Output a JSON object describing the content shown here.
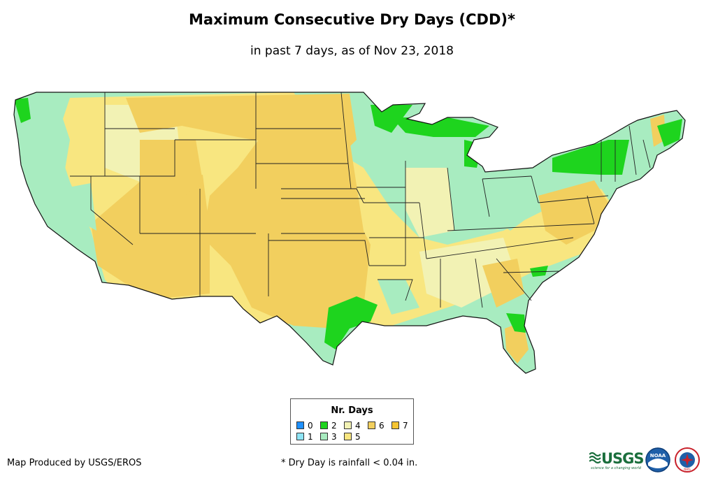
{
  "title": "Maximum Consecutive Dry Days (CDD)*",
  "subtitle": "in past 7 days, as of Nov 23, 2018",
  "legend": {
    "title": "Nr. Days",
    "items": [
      {
        "label": "0",
        "color": "#1e90ff"
      },
      {
        "label": "1",
        "color": "#8ee4f5"
      },
      {
        "label": "2",
        "color": "#1ed41e"
      },
      {
        "label": "3",
        "color": "#a8ecc0"
      },
      {
        "label": "4",
        "color": "#f2f2b4"
      },
      {
        "label": "5",
        "color": "#f8e680"
      },
      {
        "label": "6",
        "color": "#f2cf5e"
      },
      {
        "label": "7",
        "color": "#f5c431"
      }
    ]
  },
  "credit": "Map Produced by USGS/EROS",
  "footnote": "* Dry Day is rainfall < 0.04 in.",
  "logos": {
    "usgs": "USGS",
    "usgs_tagline": "science for a changing world",
    "noaa": "NOAA",
    "nws": "NWS"
  }
}
